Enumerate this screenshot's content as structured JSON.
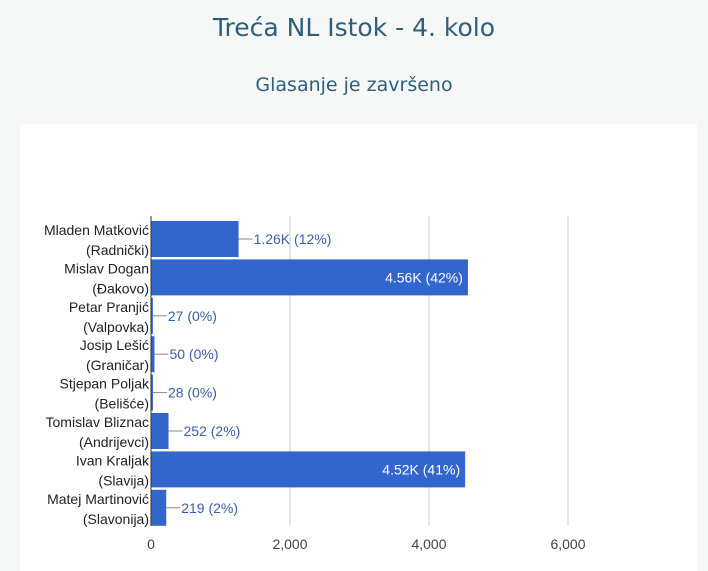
{
  "header": {
    "title": "Treća NL Istok - 4. kolo",
    "subtitle": "Glasanje je završeno"
  },
  "colors": {
    "bar": "#3366cc",
    "grid": "#cccccc",
    "label_outside": "#3a5ea8",
    "title": "#2d5f7d"
  },
  "chart_data": {
    "type": "bar",
    "orientation": "horizontal",
    "categories": [
      [
        "Mladen Matković",
        "(Radnički)"
      ],
      [
        "Mislav Dogan",
        "(Đakovo)"
      ],
      [
        "Petar Pranjić",
        "(Valpovka)"
      ],
      [
        "Josip Lešić",
        "(Graničar)"
      ],
      [
        "Stjepan Poljak",
        "(Belišće)"
      ],
      [
        "Tomislav Bliznac",
        "(Andrijevci)"
      ],
      [
        "Ivan Kraljak",
        "(Slavija)"
      ],
      [
        "Matej Martinović",
        "(Slavonija)"
      ]
    ],
    "values": [
      1260,
      4560,
      27,
      50,
      28,
      252,
      4520,
      219
    ],
    "labels": [
      "1.26K (12%)",
      "4.56K (42%)",
      "27 (0%)",
      "50 (0%)",
      "28 (0%)",
      "252 (2%)",
      "4.52K (41%)",
      "219 (2%)"
    ],
    "xlim": [
      0,
      6000
    ],
    "xticks": [
      0,
      2000,
      4000,
      6000
    ],
    "xtick_labels": [
      "0",
      "2,000",
      "4,000",
      "6,000"
    ],
    "grid": true,
    "legend": "none"
  }
}
